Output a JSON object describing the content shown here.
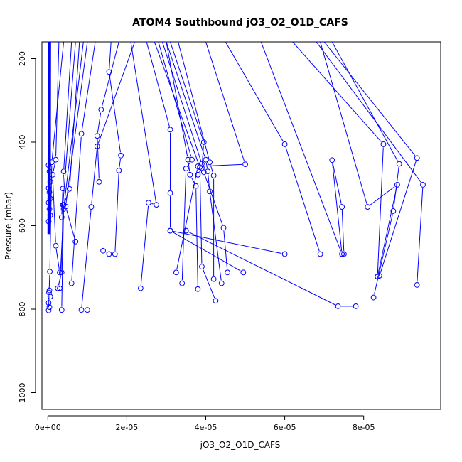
{
  "chart_data": {
    "type": "line",
    "title": "ATOM4 Southbound jO3_O2_O1D_CAFS",
    "xlabel": "jO3_O2_O1D_CAFS",
    "ylabel": "Pressure (mbar)",
    "xlim": [
      -1.5e-06,
      9.95e-05
    ],
    "ylim": [
      1040,
      160
    ],
    "y_reversed": true,
    "x_ticks": [
      {
        "value": 0,
        "label": "0e+00"
      },
      {
        "value": 2e-05,
        "label": "2e-05"
      },
      {
        "value": 4e-05,
        "label": "4e-05"
      },
      {
        "value": 6e-05,
        "label": "6e-05"
      },
      {
        "value": 8e-05,
        "label": "8e-05"
      }
    ],
    "y_ticks": [
      {
        "value": 200,
        "label": "200"
      },
      {
        "value": 400,
        "label": "400"
      },
      {
        "value": 600,
        "label": "600"
      },
      {
        "value": 800,
        "label": "800"
      },
      {
        "value": 1000,
        "label": "1000"
      }
    ],
    "grid": false,
    "legend": "none",
    "series_color": "#0000ff",
    "marker": "open-circle",
    "profiles": [
      [
        [
          4e-06,
          160
        ],
        [
          1e-06,
          448
        ],
        [
          5e-07,
          710
        ],
        [
          3e-07,
          760
        ],
        [
          2e-07,
          803
        ]
      ],
      [
        [
          9e-06,
          160
        ],
        [
          4e-06,
          560
        ],
        [
          3e-06,
          750
        ]
      ],
      [
        [
          1.2e-05,
          160
        ],
        [
          8.5e-06,
          380
        ],
        [
          6e-06,
          738
        ]
      ],
      [
        [
          2.2e-05,
          160
        ],
        [
          1.25e-05,
          410
        ],
        [
          1.1e-05,
          555
        ],
        [
          8.5e-06,
          802
        ],
        [
          1e-05,
          802
        ]
      ],
      [
        [
          1.8e-05,
          160
        ],
        [
          1.35e-05,
          322
        ],
        [
          1.25e-05,
          385
        ],
        [
          1.3e-05,
          495
        ]
      ],
      [
        [
          1.6e-05,
          160
        ],
        [
          1.55e-05,
          232
        ],
        [
          1.85e-05,
          432
        ],
        [
          1.8e-05,
          468
        ],
        [
          1.7e-05,
          668
        ],
        [
          1.55e-05,
          668
        ],
        [
          1.4e-05,
          660
        ]
      ],
      [
        [
          2.8e-06,
          160
        ],
        [
          2e-06,
          442
        ],
        [
          1.2e-06,
          478
        ],
        [
          2e-06,
          648
        ],
        [
          3e-06,
          712
        ]
      ],
      [
        [
          6e-06,
          160
        ],
        [
          4e-06,
          470
        ],
        [
          3.8e-06,
          511
        ],
        [
          3.5e-06,
          580
        ]
      ],
      [
        [
          8e-06,
          160
        ],
        [
          5.5e-06,
          512
        ],
        [
          4e-06,
          550
        ],
        [
          3.5e-06,
          802
        ]
      ],
      [
        [
          1e-05,
          160
        ],
        [
          4.5e-06,
          554
        ],
        [
          7e-06,
          638
        ]
      ],
      [
        [
          7e-06,
          160
        ],
        [
          3.8e-06,
          550
        ],
        [
          3.5e-06,
          712
        ],
        [
          2.5e-06,
          750
        ]
      ],
      [
        [
          2.5e-05,
          160
        ],
        [
          3.1e-05,
          370
        ],
        [
          3.1e-05,
          522
        ],
        [
          3.1e-05,
          612
        ],
        [
          4.95e-05,
          712
        ]
      ],
      [
        [
          2.8e-05,
          160
        ],
        [
          3.65e-05,
          442
        ],
        [
          3.5e-05,
          463
        ],
        [
          3.4e-05,
          738
        ]
      ],
      [
        [
          3e-05,
          160
        ],
        [
          3.55e-05,
          442
        ],
        [
          3.6e-05,
          478
        ],
        [
          3.75e-05,
          505
        ],
        [
          3.8e-05,
          752
        ]
      ],
      [
        [
          3.1e-05,
          160
        ],
        [
          3.95e-05,
          400
        ],
        [
          3.9e-05,
          462
        ],
        [
          3.8e-05,
          478
        ]
      ],
      [
        [
          3.3e-05,
          160
        ],
        [
          4.1e-05,
          448
        ],
        [
          4.2e-05,
          480
        ],
        [
          4.2e-05,
          728
        ]
      ],
      [
        [
          3e-05,
          160
        ],
        [
          4e-05,
          442
        ],
        [
          4.05e-05,
          470
        ],
        [
          4.1e-05,
          518
        ],
        [
          4.4e-05,
          738
        ]
      ],
      [
        [
          2.9e-05,
          160
        ],
        [
          3.9e-05,
          452
        ],
        [
          3.95e-05,
          472
        ],
        [
          4.45e-05,
          605
        ],
        [
          4.55e-05,
          712
        ]
      ],
      [
        [
          2.7e-05,
          160
        ],
        [
          3.85e-05,
          460
        ],
        [
          3.9e-05,
          698
        ],
        [
          4.25e-05,
          780
        ]
      ],
      [
        [
          2.1e-05,
          160
        ],
        [
          2.75e-05,
          550
        ],
        [
          2.55e-05,
          545
        ],
        [
          2.35e-05,
          750
        ]
      ],
      [
        [
          4e-05,
          160
        ],
        [
          5e-05,
          453
        ],
        [
          3.8e-05,
          458
        ],
        [
          3.25e-05,
          712
        ]
      ],
      [
        [
          4.5e-05,
          160
        ],
        [
          6e-05,
          405
        ],
        [
          6.9e-05,
          668
        ],
        [
          7.45e-05,
          668
        ],
        [
          7.2e-05,
          443
        ],
        [
          7.45e-05,
          555
        ],
        [
          7.5e-05,
          668
        ]
      ],
      [
        [
          5.4e-05,
          160
        ],
        [
          7.45e-05,
          668
        ]
      ],
      [
        [
          6.2e-05,
          160
        ],
        [
          8.5e-05,
          405
        ],
        [
          8.35e-05,
          722
        ]
      ],
      [
        [
          6.8e-05,
          160
        ],
        [
          9.5e-05,
          502
        ],
        [
          9.35e-05,
          742
        ]
      ],
      [
        [
          7e-05,
          160
        ],
        [
          9.35e-05,
          438
        ],
        [
          8.4e-05,
          720
        ]
      ],
      [
        [
          7.2e-05,
          160
        ],
        [
          8.9e-05,
          452
        ],
        [
          8.75e-05,
          565
        ],
        [
          8.25e-05,
          772
        ]
      ],
      [
        [
          6.9e-05,
          160
        ],
        [
          8.1e-05,
          555
        ],
        [
          8.85e-05,
          502
        ],
        [
          8.35e-05,
          722
        ]
      ],
      [
        [
          3.1e-05,
          612
        ],
        [
          6e-05,
          668
        ]
      ],
      [
        [
          3.5e-05,
          612
        ],
        [
          7.35e-05,
          793
        ],
        [
          7.8e-05,
          793
        ]
      ]
    ]
  }
}
